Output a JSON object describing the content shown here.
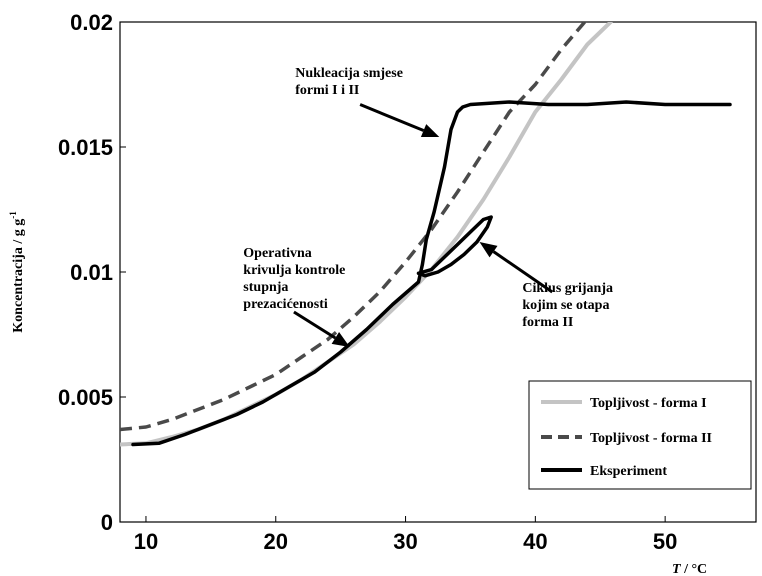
{
  "chart_data": {
    "type": "line",
    "xlabel_var": "T",
    "xlabel_unit": " / °C",
    "ylabel": "Koncentracija / g g",
    "ylabel_sup": "-1",
    "xlim": [
      8,
      57
    ],
    "ylim": [
      0,
      0.02
    ],
    "xticks": [
      10,
      20,
      30,
      40,
      50
    ],
    "yticks": [
      0,
      0.005,
      0.01,
      0.015,
      0.02
    ],
    "ytick_labels": [
      "0",
      "0.005",
      "0.01",
      "0.015",
      "0.02"
    ],
    "grid": false,
    "legend_position": "bottom-right",
    "series": [
      {
        "name": "Topljivost - forma I",
        "color": "#c4c4c4",
        "dash": "solid",
        "x": [
          8,
          10,
          12,
          14,
          16,
          18,
          20,
          22,
          24,
          26,
          28,
          30,
          32,
          34,
          36,
          38,
          40,
          42,
          44,
          45.8
        ],
        "y": [
          0.0031,
          0.00315,
          0.0034,
          0.0037,
          0.0041,
          0.0046,
          0.0051,
          0.0057,
          0.0064,
          0.0071,
          0.008,
          0.009,
          0.0101,
          0.0114,
          0.0129,
          0.0146,
          0.0164,
          0.0177,
          0.0191,
          0.02
        ]
      },
      {
        "name": "Topljivost - forma II",
        "color": "#4a4a4a",
        "dash": "dashed",
        "x": [
          8,
          10,
          12,
          14,
          16,
          18,
          20,
          22,
          24,
          26,
          28,
          30,
          32,
          34,
          36,
          38,
          40,
          42,
          43.8
        ],
        "y": [
          0.0037,
          0.0038,
          0.0041,
          0.0045,
          0.0049,
          0.0054,
          0.0059,
          0.0066,
          0.0073,
          0.0082,
          0.0092,
          0.0104,
          0.0117,
          0.0132,
          0.0148,
          0.0164,
          0.0175,
          0.0189,
          0.02
        ]
      },
      {
        "name": "Eksperiment",
        "color": "#000000",
        "dash": "solid",
        "x": [
          9,
          11,
          13,
          15,
          17,
          19,
          21,
          23,
          25,
          27,
          29,
          31,
          31.3,
          31.6,
          32.2,
          33,
          33.5,
          34,
          34.4,
          35,
          38,
          41,
          44,
          47,
          50,
          53,
          55
        ],
        "y": [
          0.0031,
          0.00315,
          0.0035,
          0.0039,
          0.0043,
          0.0048,
          0.0054,
          0.006,
          0.0068,
          0.0077,
          0.0087,
          0.0096,
          0.0103,
          0.0113,
          0.0124,
          0.0142,
          0.0157,
          0.0164,
          0.0166,
          0.0167,
          0.0168,
          0.0167,
          0.0167,
          0.0168,
          0.0167,
          0.0167,
          0.0167
        ]
      },
      {
        "name": "",
        "color": "#000000",
        "dash": "solid",
        "x": [
          31,
          32,
          33,
          34,
          35,
          36,
          36.6,
          36.3,
          35.5,
          34.5,
          33.5,
          32.5,
          31.5,
          31
        ],
        "y": [
          0.00995,
          0.0101,
          0.0106,
          0.0111,
          0.0116,
          0.0121,
          0.0122,
          0.0118,
          0.0112,
          0.0107,
          0.0103,
          0.01,
          0.00985,
          0.00995
        ]
      }
    ],
    "annotations": [
      {
        "lines": [
          "Nukleacija smjese",
          "formi I i II"
        ],
        "text_x": 21.5,
        "text_y": 0.0178,
        "arrow_from": [
          26.5,
          0.0167
        ],
        "arrow_to": [
          32.6,
          0.0154
        ]
      },
      {
        "lines": [
          "Operativna",
          "krivulja kontrole",
          "stupnja",
          "prezacićenosti"
        ],
        "text_x": 17.5,
        "text_y": 0.0106,
        "arrow_from": [
          21.4,
          0.0084
        ],
        "arrow_to": [
          25.7,
          0.007
        ]
      },
      {
        "lines": [
          "Ciklus grijanja",
          "kojim se otapa",
          "forma II"
        ],
        "text_x": 39,
        "text_y": 0.0092,
        "arrow_from": [
          41.3,
          0.0092
        ],
        "arrow_to": [
          35.7,
          0.0112
        ]
      }
    ]
  }
}
